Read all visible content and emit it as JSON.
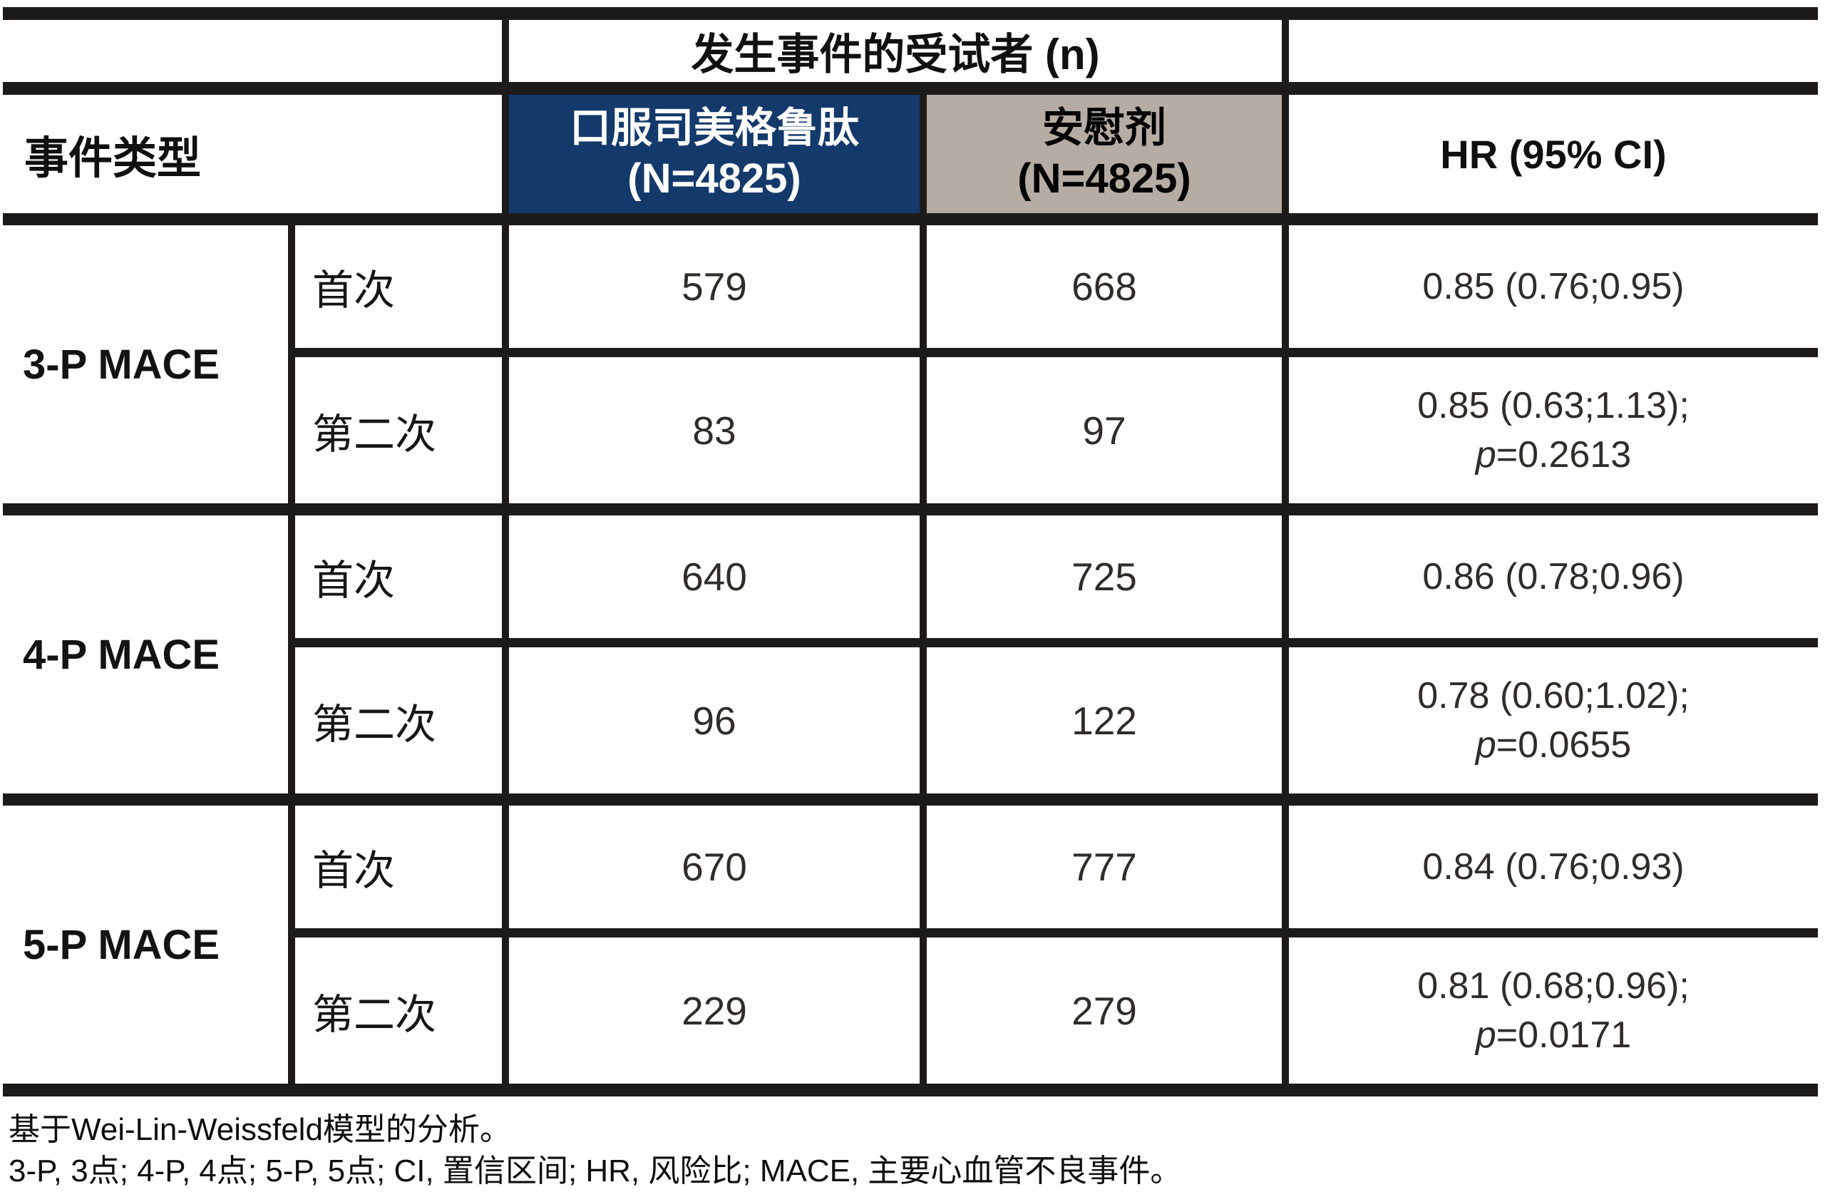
{
  "colors": {
    "semaglutide_header_bg": "#14396B",
    "semaglutide_header_text": "#FFFFFF",
    "placebo_header_bg": "#B5ADA3",
    "placebo_header_text": "#000000",
    "grid_line": "#1D1B1A",
    "page_bg": "#FFFFFF"
  },
  "table": {
    "span_header": "发生事件的受试者 (n)",
    "event_type_header": "事件类型",
    "columns": {
      "semaglutide": {
        "name": "口服司美格鲁肽",
        "n": "(N=4825)"
      },
      "placebo": {
        "name": "安慰剂",
        "n": "(N=4825)"
      },
      "hr": "HR (95% CI)"
    },
    "groups": [
      {
        "label": "3-P MACE",
        "rows": [
          {
            "occurrence": "首次",
            "semaglutide": "579",
            "placebo": "668",
            "hr": "0.85 (0.76;0.95)"
          },
          {
            "occurrence": "第二次",
            "semaglutide": "83",
            "placebo": "97",
            "hr": "0.85 (0.63;1.13);",
            "p_label": "p",
            "p_value": "=0.2613"
          }
        ]
      },
      {
        "label": "4-P MACE",
        "rows": [
          {
            "occurrence": "首次",
            "semaglutide": "640",
            "placebo": "725",
            "hr": "0.86 (0.78;0.96)"
          },
          {
            "occurrence": "第二次",
            "semaglutide": "96",
            "placebo": "122",
            "hr": "0.78 (0.60;1.02);",
            "p_label": "p",
            "p_value": "=0.0655"
          }
        ]
      },
      {
        "label": "5-P MACE",
        "rows": [
          {
            "occurrence": "首次",
            "semaglutide": "670",
            "placebo": "777",
            "hr": "0.84 (0.76;0.93)"
          },
          {
            "occurrence": "第二次",
            "semaglutide": "229",
            "placebo": "279",
            "hr": "0.81 (0.68;0.96);",
            "p_label": "p",
            "p_value": "=0.0171"
          }
        ]
      }
    ],
    "footnotes": [
      "基于Wei-Lin-Weissfeld模型的分析。",
      "3-P, 3点; 4-P, 4点; 5-P, 5点; CI, 置信区间; HR, 风险比; MACE, 主要心血管不良事件。"
    ]
  }
}
